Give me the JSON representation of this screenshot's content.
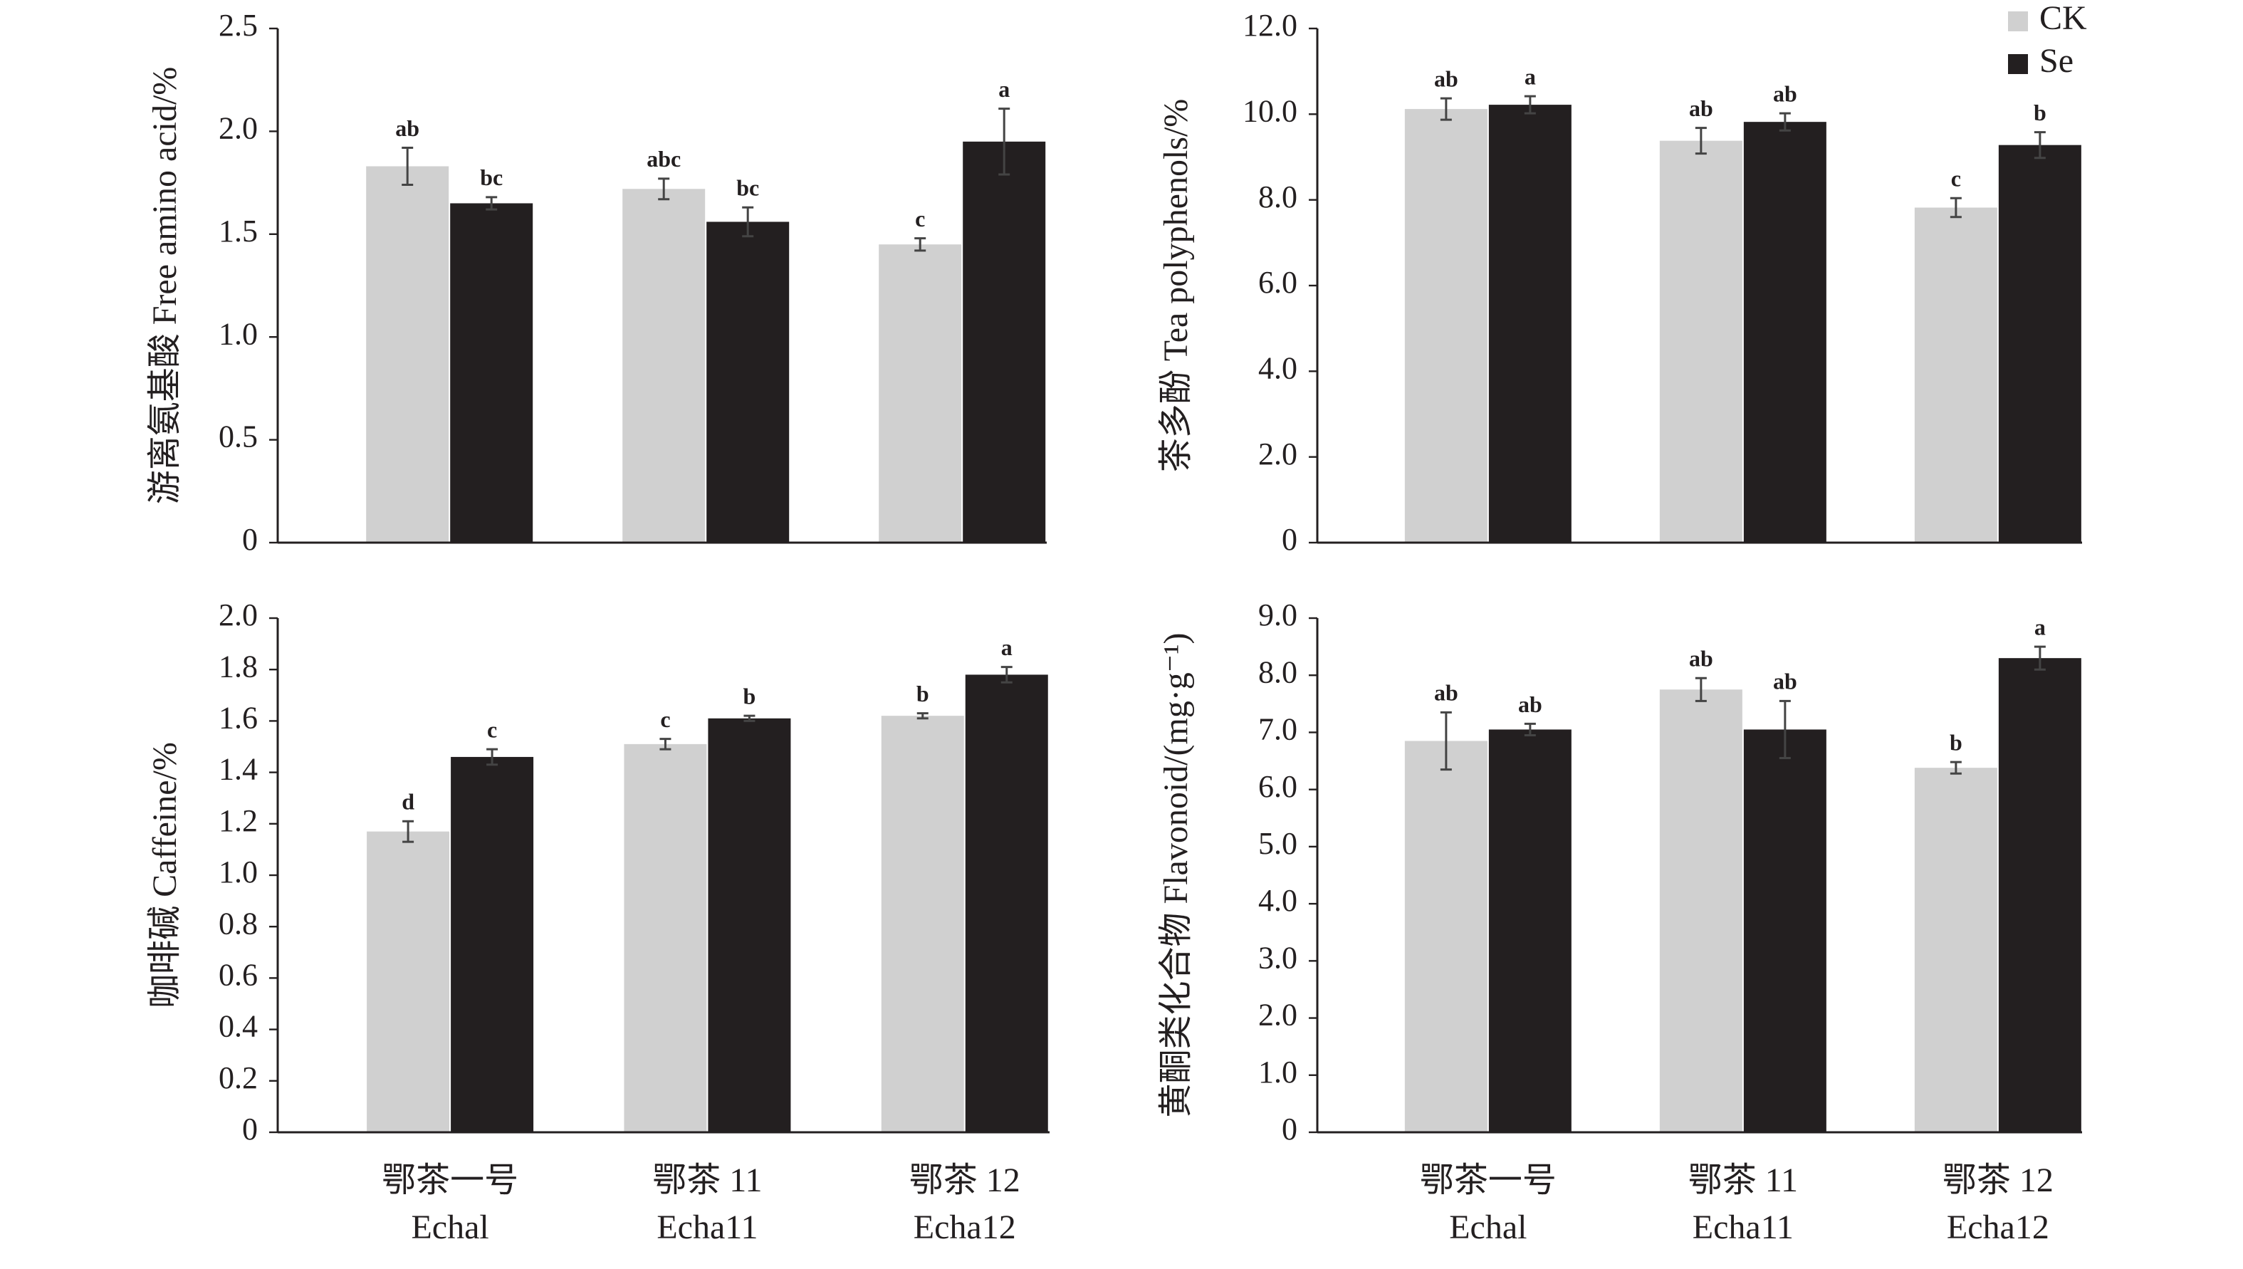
{
  "chart_data": [
    {
      "type": "bar",
      "ylabel": "游离氨基酸 Free amino acid/%",
      "categories": [
        null,
        null,
        null
      ],
      "ylim": [
        0,
        2.5
      ],
      "yticks": [
        0,
        0.5,
        {
          "value": 1,
          "label": "1.0"
        },
        1.5,
        {
          "value": 2,
          "label": "2.0"
        },
        2.5
      ],
      "series": [
        {
          "color": "#d0d0d0",
          "values": [
            1.83,
            1.72,
            1.45
          ],
          "errors": [
            0.09,
            0.05,
            0.03
          ],
          "letters": [
            "ab",
            "abc",
            "c"
          ]
        },
        {
          "color": "#231f20",
          "values": [
            1.65,
            1.56,
            1.95
          ],
          "errors": [
            0.03,
            0.07,
            0.16
          ],
          "letters": [
            "bc",
            "bc",
            "a"
          ]
        }
      ]
    },
    {
      "type": "bar",
      "ylabel": "茶多酚 Tea polyphenols/%",
      "categories": [
        null,
        null,
        null
      ],
      "ylim": [
        0,
        12
      ],
      "yticks": [
        0,
        {
          "value": 2,
          "label": "2.0"
        },
        {
          "value": 4,
          "label": "4.0"
        },
        {
          "value": 6,
          "label": "6.0"
        },
        {
          "value": 8,
          "label": "8.0"
        },
        {
          "value": 10,
          "label": "10.0"
        },
        {
          "value": 12,
          "label": "12.0"
        }
      ],
      "legend": "upper right",
      "series": [
        {
          "name": "CK",
          "color": "#d0d0d0",
          "values": [
            10.12,
            9.38,
            7.82
          ],
          "errors": [
            0.25,
            0.3,
            0.22
          ],
          "letters": [
            "ab",
            "ab",
            "c"
          ]
        },
        {
          "name": "Se",
          "color": "#231f20",
          "values": [
            10.22,
            9.82,
            9.28
          ],
          "errors": [
            0.2,
            0.2,
            0.3
          ],
          "letters": [
            "a",
            "ab",
            "b"
          ]
        }
      ]
    },
    {
      "type": "bar",
      "ylabel": "咖啡碱 Caffeine/%",
      "categories": [
        [
          "鄂茶一号",
          "Echal"
        ],
        [
          "鄂茶 11",
          "Echa11"
        ],
        [
          "鄂茶 12",
          "Echa12"
        ]
      ],
      "ylim": [
        0,
        2
      ],
      "yticks": [
        0,
        0.2,
        0.4,
        0.6,
        0.8,
        {
          "value": 1,
          "label": "1.0"
        },
        1.2,
        1.4,
        1.6,
        1.8,
        {
          "value": 2,
          "label": "2.0"
        }
      ],
      "series": [
        {
          "color": "#d0d0d0",
          "values": [
            1.17,
            1.51,
            1.62
          ],
          "errors": [
            0.04,
            0.02,
            0.01
          ],
          "letters": [
            "d",
            "c",
            "b"
          ]
        },
        {
          "color": "#231f20",
          "values": [
            1.46,
            1.61,
            1.78
          ],
          "errors": [
            0.03,
            0.01,
            0.03
          ],
          "letters": [
            "c",
            "b",
            "a"
          ]
        }
      ]
    },
    {
      "type": "bar",
      "ylabel": "黄酮类化合物 Flavonoid/(mg·g⁻¹)",
      "categories": [
        [
          "鄂茶一号",
          "Echal"
        ],
        [
          "鄂茶 11",
          "Echa11"
        ],
        [
          "鄂茶 12",
          "Echa12"
        ]
      ],
      "ylim": [
        0,
        9
      ],
      "yticks": [
        0,
        {
          "value": 1,
          "label": "1.0"
        },
        {
          "value": 2,
          "label": "2.0"
        },
        {
          "value": 3,
          "label": "3.0"
        },
        {
          "value": 4,
          "label": "4.0"
        },
        {
          "value": 5,
          "label": "5.0"
        },
        {
          "value": 6,
          "label": "6.0"
        },
        {
          "value": 7,
          "label": "7.0"
        },
        {
          "value": 8,
          "label": "8.0"
        },
        {
          "value": 9,
          "label": "9.0"
        }
      ],
      "series": [
        {
          "color": "#d0d0d0",
          "values": [
            6.85,
            7.75,
            6.38
          ],
          "errors": [
            0.5,
            0.2,
            0.1
          ],
          "letters": [
            "ab",
            "ab",
            "b"
          ]
        },
        {
          "color": "#231f20",
          "values": [
            7.05,
            7.05,
            8.3
          ],
          "errors": [
            0.1,
            0.5,
            0.2
          ],
          "letters": [
            "ab",
            "ab",
            "a"
          ]
        }
      ]
    }
  ]
}
